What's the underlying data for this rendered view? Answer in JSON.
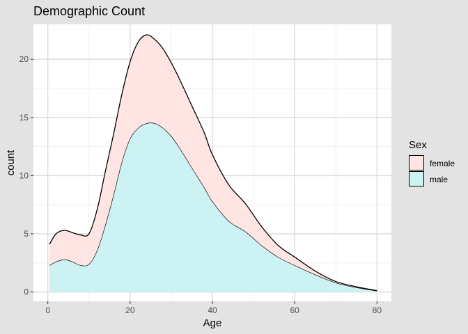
{
  "chart_data": {
    "type": "area",
    "stacked": true,
    "title": "Demographic Count",
    "xlabel": "Age",
    "ylabel": "count",
    "xlim": [
      -3.5,
      83.5
    ],
    "ylim": [
      -0.8,
      23.0
    ],
    "x_ticks": [
      0,
      20,
      40,
      60,
      80
    ],
    "y_ticks": [
      0,
      5,
      10,
      15,
      20
    ],
    "grid": true,
    "legend": {
      "title": "Sex",
      "position": "right",
      "entries": [
        {
          "label": "female",
          "color": "#f8766d"
        },
        {
          "label": "male",
          "color": "#00bfc4"
        }
      ]
    },
    "x": [
      0.4,
      2,
      4,
      6,
      8,
      10,
      12,
      14,
      16,
      18,
      20,
      22,
      24,
      26,
      28,
      30,
      32,
      35,
      38,
      40,
      44,
      48,
      52,
      56,
      60,
      65,
      70,
      75,
      80
    ],
    "series": [
      {
        "name": "male",
        "color": "#00bfc4",
        "values": [
          2.3,
          2.6,
          2.8,
          2.6,
          2.3,
          2.4,
          3.6,
          5.8,
          8.4,
          11.2,
          13.2,
          14.1,
          14.5,
          14.5,
          14.1,
          13.4,
          12.4,
          10.7,
          9.0,
          7.8,
          6.1,
          5.2,
          4.0,
          3.0,
          2.3,
          1.5,
          0.8,
          0.4,
          0.1
        ]
      },
      {
        "name": "female",
        "color": "#f8766d",
        "values": [
          1.8,
          2.4,
          2.5,
          2.5,
          2.6,
          2.6,
          3.5,
          4.6,
          5.2,
          5.8,
          6.6,
          7.4,
          7.6,
          7.2,
          6.8,
          6.3,
          5.9,
          5.3,
          4.7,
          4.0,
          3.1,
          2.4,
          1.6,
          1.0,
          0.7,
          0.3,
          0.1,
          0.05,
          0.02
        ]
      }
    ]
  }
}
